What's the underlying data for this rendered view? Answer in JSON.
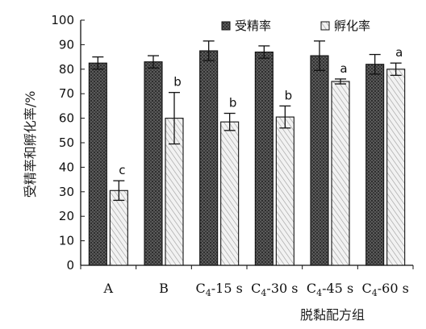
{
  "chart_data": {
    "type": "bar",
    "xlabel": "脱黏配方组",
    "ylabel": "受精率和孵化率/%",
    "ylim": [
      0,
      100
    ],
    "ytick_step": 10,
    "grid": false,
    "legend_position": "top",
    "categories": [
      {
        "base": "A",
        "sub": "",
        "suffix": ""
      },
      {
        "base": "B",
        "sub": "",
        "suffix": ""
      },
      {
        "base": "C",
        "sub": "4",
        "suffix": "-15 s"
      },
      {
        "base": "C",
        "sub": "4",
        "suffix": "-30 s"
      },
      {
        "base": "C",
        "sub": "4",
        "suffix": "-45 s"
      },
      {
        "base": "C",
        "sub": "4",
        "suffix": "-60 s"
      }
    ],
    "series": [
      {
        "name": "受精率",
        "fill": "#4a4a4a",
        "values": [
          82.5,
          83,
          87.5,
          87,
          85.5,
          82
        ],
        "errors": [
          2.5,
          2.5,
          4,
          2.5,
          6,
          4
        ],
        "labels": [
          "",
          "",
          "",
          "",
          "",
          ""
        ]
      },
      {
        "name": "孵化率",
        "fill": "#e4e4e4",
        "values": [
          30.5,
          60,
          58.5,
          60.5,
          75,
          80
        ],
        "errors": [
          4,
          10.5,
          3.5,
          4.5,
          1,
          2.5
        ],
        "labels": [
          "c",
          "b",
          "b",
          "b",
          "a",
          "a"
        ]
      }
    ]
  }
}
